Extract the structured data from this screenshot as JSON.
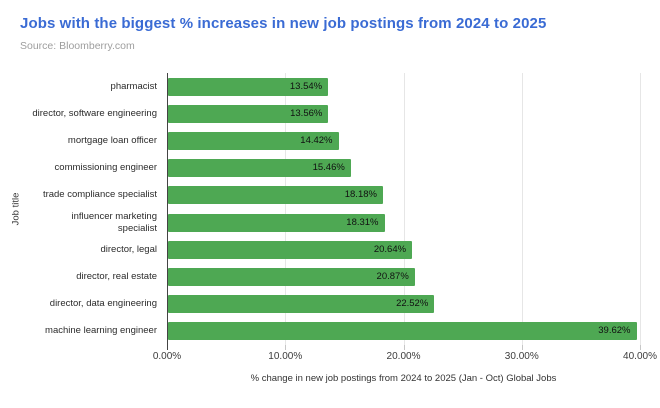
{
  "title": "Jobs with the biggest % increases in new job postings from 2024 to 2025",
  "source": "Source: Bloomberry.com",
  "colors": {
    "title": "#3a6bd4",
    "bar": "#4ea853",
    "source": "#9e9e9e",
    "gridline": "#e6e6e6",
    "axis": "#444444"
  },
  "chart_data": {
    "type": "bar",
    "orientation": "horizontal",
    "title": "Jobs with the biggest % increases in new job postings from 2024 to 2025",
    "subtitle": "Source: Bloomberry.com",
    "categories": [
      "pharmacist",
      "director, software engineering",
      "mortgage loan officer",
      "commissioning engineer",
      "trade compliance specialist",
      "influencer marketing\nspecialist",
      "director, legal",
      "director, real estate",
      "director, data engineering",
      "machine learning engineer"
    ],
    "values": [
      13.54,
      13.56,
      14.42,
      15.46,
      18.18,
      18.31,
      20.64,
      20.87,
      22.52,
      39.62
    ],
    "value_labels": [
      "13.54%",
      "13.56%",
      "14.42%",
      "15.46%",
      "18.18%",
      "18.31%",
      "20.64%",
      "20.87%",
      "22.52%",
      "39.62%"
    ],
    "xlabel": "% change in new job postings from 2024 to 2025 (Jan - Oct) Global Jobs",
    "ylabel": "Job title",
    "xlim": [
      0,
      40
    ],
    "xticks": [
      "0.00%",
      "10.00%",
      "20.00%",
      "30.00%",
      "40.00%"
    ],
    "grid": true,
    "legend": false,
    "bar_label_position": "inside-end"
  }
}
